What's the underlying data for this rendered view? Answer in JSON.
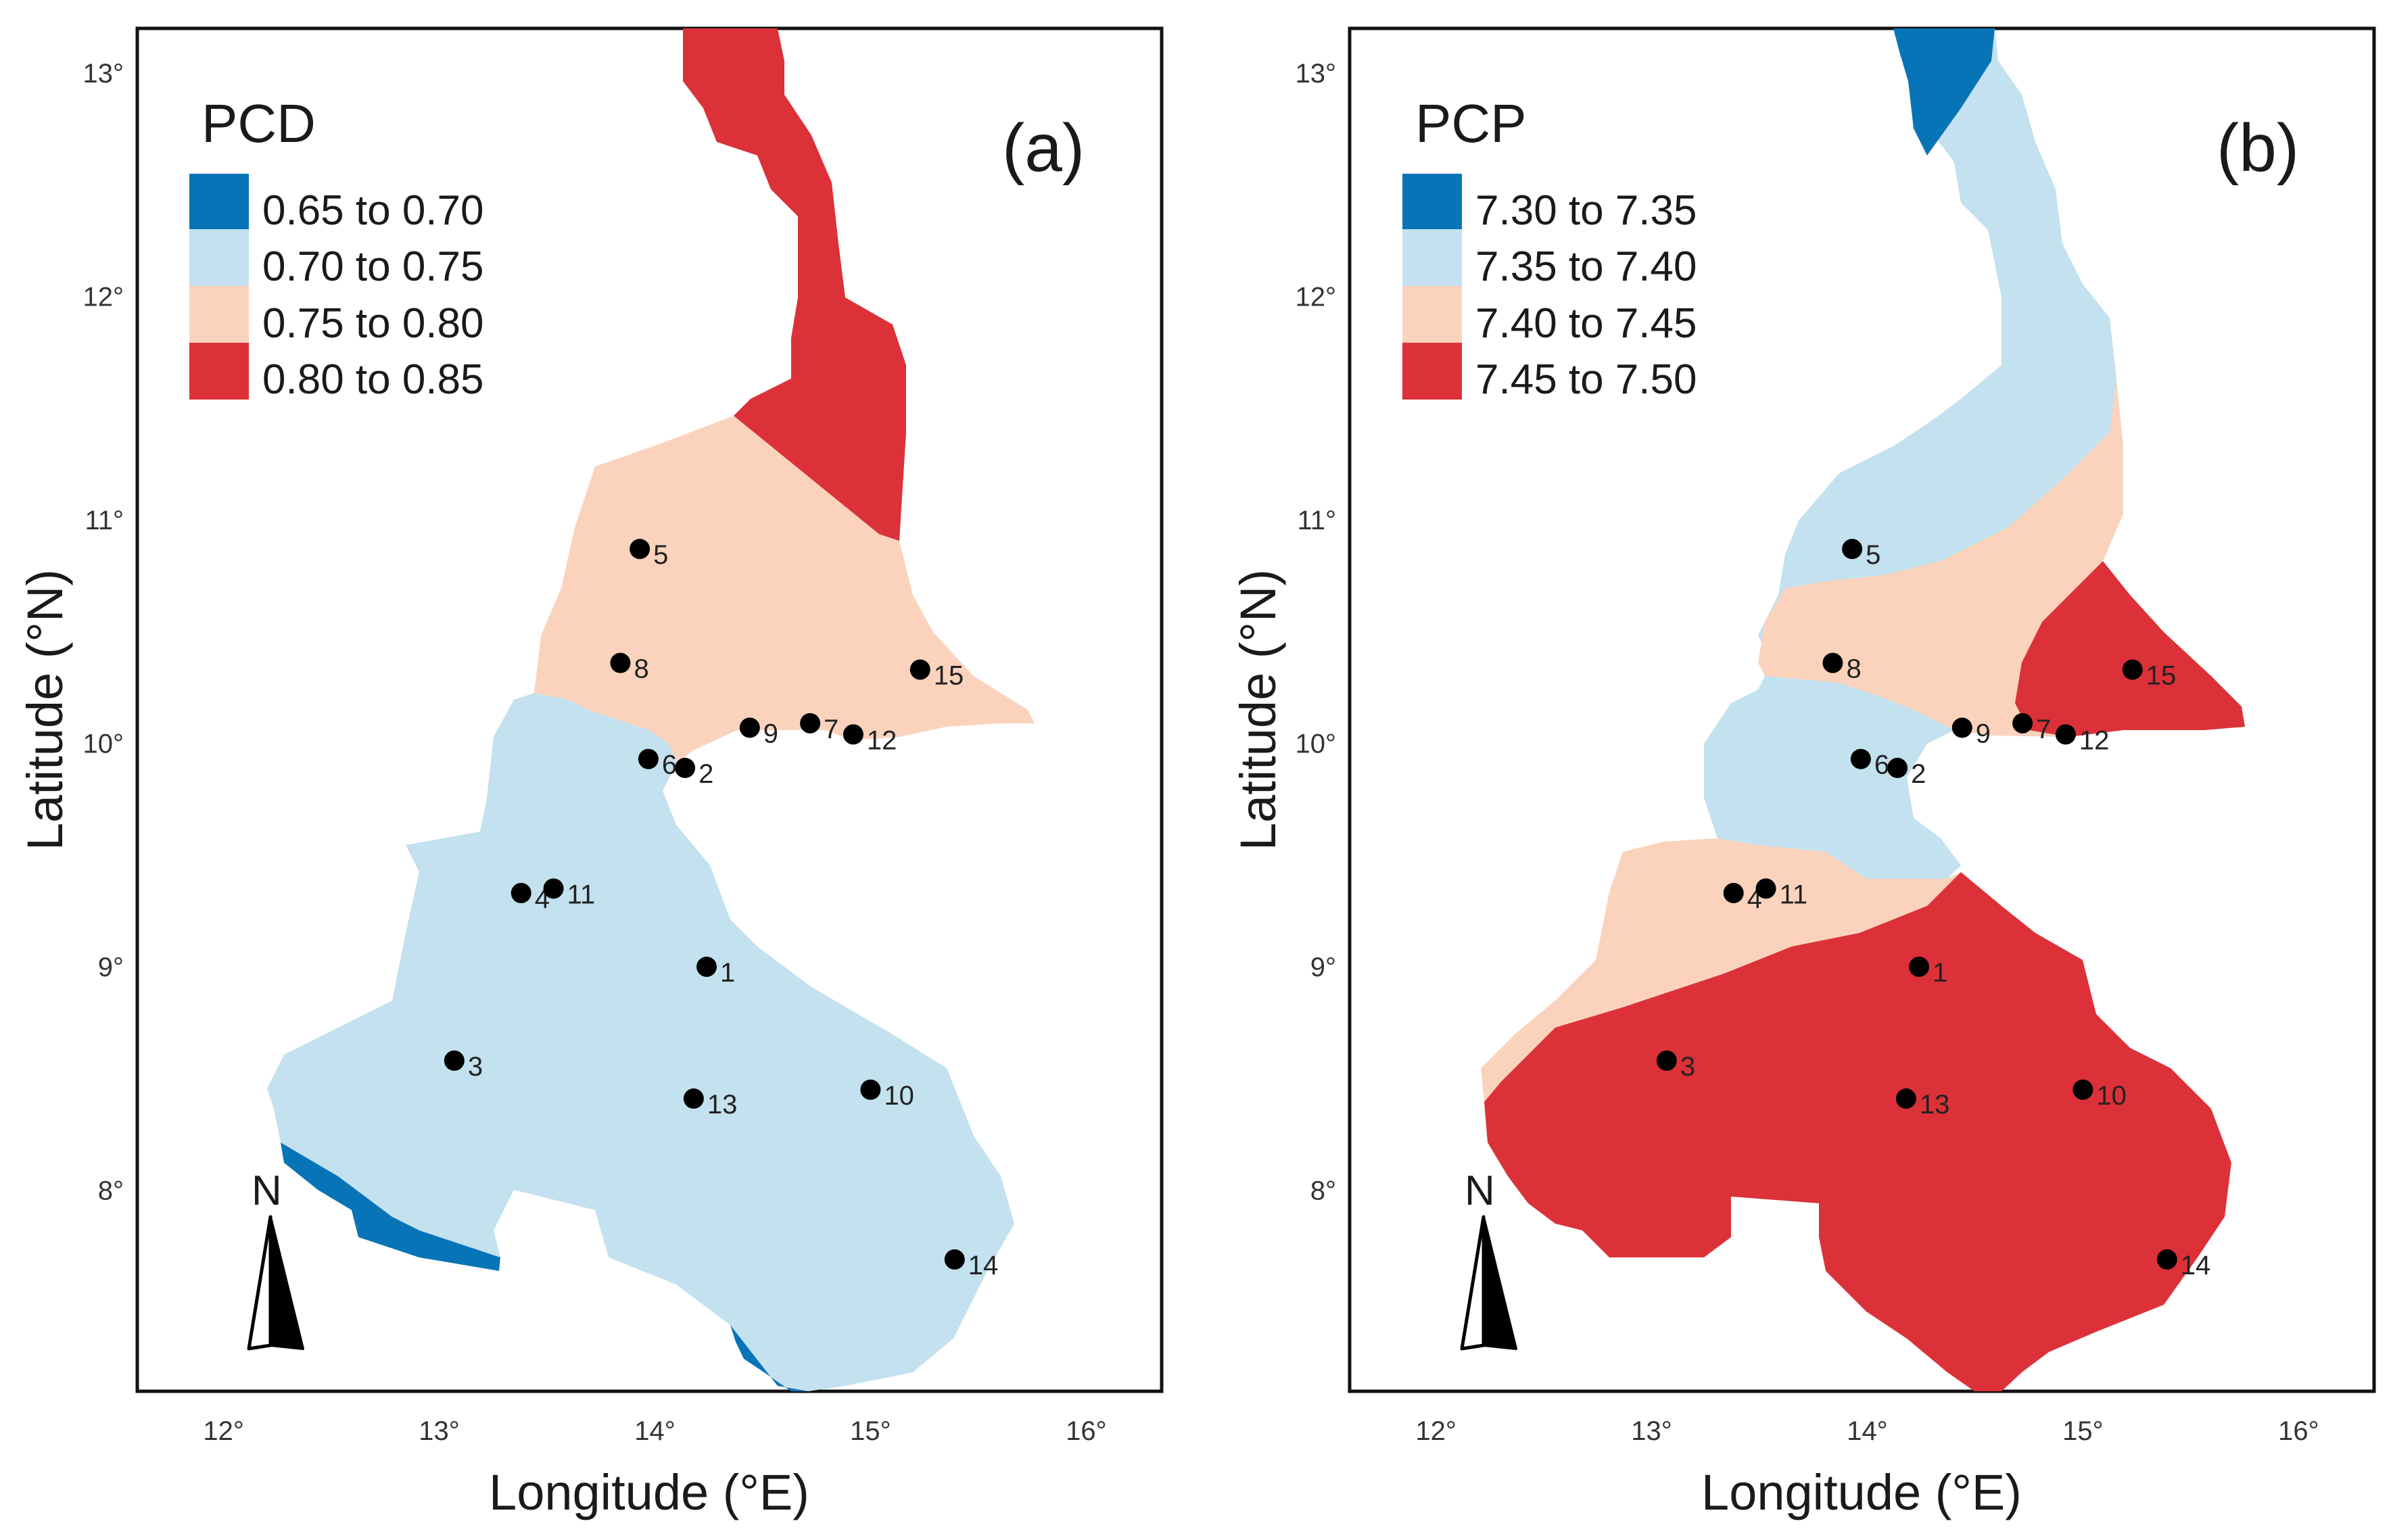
{
  "axes": {
    "x_label": "Longitude (°E)",
    "y_label": "Latitude (°N)",
    "x_ticks": [
      "12°",
      "13°",
      "14°",
      "15°",
      "16°"
    ],
    "y_ticks": [
      "8°",
      "9°",
      "10°",
      "11°",
      "12°",
      "13°"
    ],
    "x_range": [
      11.6,
      16.35
    ],
    "y_range": [
      7.1,
      13.2
    ]
  },
  "north_arrow_label": "N",
  "colors": {
    "dark_blue": "#0874b8",
    "light_blue": "#c3e1ee",
    "peach": "#fbd3bd",
    "red": "#dc3138",
    "station": "#000000"
  },
  "panels": [
    {
      "tag": "(a)",
      "legend_title": "PCD",
      "legend": [
        {
          "label": "0.65 to 0.70",
          "color": "#0874b8"
        },
        {
          "label": "0.70 to 0.75",
          "color": "#c3e1ee"
        },
        {
          "label": "0.75 to 0.80",
          "color": "#fbd3bd"
        },
        {
          "label": "0.80 to 0.85",
          "color": "#dc3138"
        }
      ]
    },
    {
      "tag": "(b)",
      "legend_title": "PCP",
      "legend": [
        {
          "label": "7.30 to 7.35",
          "color": "#0874b8"
        },
        {
          "label": "7.35 to 7.40",
          "color": "#c3e1ee"
        },
        {
          "label": "7.40 to 7.45",
          "color": "#fbd3bd"
        },
        {
          "label": "7.45 to 7.50",
          "color": "#dc3138"
        }
      ]
    }
  ],
  "stations": [
    {
      "id": "1",
      "lon": 14.24,
      "lat": 9.0
    },
    {
      "id": "2",
      "lon": 14.14,
      "lat": 9.89
    },
    {
      "id": "3",
      "lon": 13.07,
      "lat": 8.58
    },
    {
      "id": "4",
      "lon": 13.38,
      "lat": 9.33
    },
    {
      "id": "5",
      "lon": 13.93,
      "lat": 10.87
    },
    {
      "id": "6",
      "lon": 13.97,
      "lat": 9.93
    },
    {
      "id": "7",
      "lon": 14.72,
      "lat": 10.09
    },
    {
      "id": "8",
      "lon": 13.84,
      "lat": 10.36
    },
    {
      "id": "9",
      "lon": 14.44,
      "lat": 10.07
    },
    {
      "id": "10",
      "lon": 15.0,
      "lat": 8.45
    },
    {
      "id": "11",
      "lon": 13.53,
      "lat": 9.35
    },
    {
      "id": "12",
      "lon": 14.92,
      "lat": 10.04
    },
    {
      "id": "13",
      "lon": 14.18,
      "lat": 8.41
    },
    {
      "id": "14",
      "lon": 15.39,
      "lat": 7.69
    },
    {
      "id": "15",
      "lon": 15.23,
      "lat": 10.33
    }
  ]
}
